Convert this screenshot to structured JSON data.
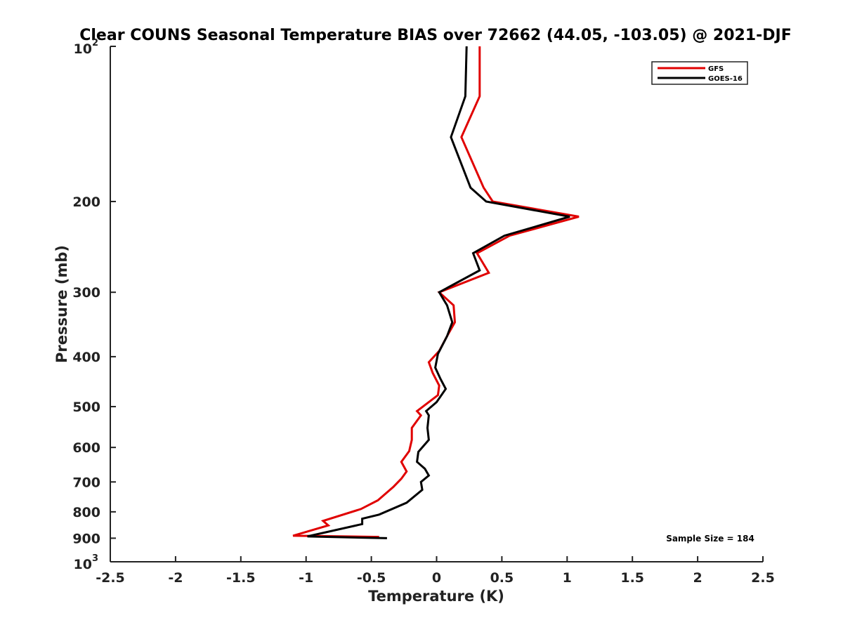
{
  "chart_data": {
    "type": "line",
    "title": "Clear COUNS Seasonal Temperature BIAS over 72662 (44.05, -103.05) @ 2021-DJF",
    "xlabel": "Temperature (K)",
    "ylabel": "Pressure (mb)",
    "xlim": [
      -2.5,
      2.5
    ],
    "ylim": [
      100,
      1000
    ],
    "yscale": "log",
    "yreversed": true,
    "grid": false,
    "legend_position": "top-right",
    "x_ticks": [
      -2.5,
      -2,
      -1.5,
      -1,
      -0.5,
      0,
      0.5,
      1,
      1.5,
      2,
      2.5
    ],
    "x_tick_labels": [
      "-2.5",
      "-2",
      "-1.5",
      "-1",
      "-0.5",
      "0",
      "0.5",
      "1",
      "1.5",
      "2",
      "2.5"
    ],
    "y_ticks": [
      {
        "value": 100,
        "base": "10",
        "exp": "2"
      },
      {
        "value": 200,
        "label": "200"
      },
      {
        "value": 300,
        "label": "300"
      },
      {
        "value": 400,
        "label": "400"
      },
      {
        "value": 500,
        "label": "500"
      },
      {
        "value": 600,
        "label": "600"
      },
      {
        "value": 700,
        "label": "700"
      },
      {
        "value": 800,
        "label": "800"
      },
      {
        "value": 900,
        "label": "900"
      },
      {
        "value": 1000,
        "base": "10",
        "exp": "3"
      }
    ],
    "annotation": "Sample Size = 184",
    "series": [
      {
        "name": "GFS",
        "color": "#e00000",
        "points": [
          [
            0.33,
            100
          ],
          [
            0.33,
            125
          ],
          [
            0.19,
            150
          ],
          [
            0.36,
            188
          ],
          [
            0.43,
            200
          ],
          [
            1.09,
            214
          ],
          [
            0.56,
            233
          ],
          [
            0.31,
            252
          ],
          [
            0.4,
            275
          ],
          [
            0.02,
            300
          ],
          [
            0.13,
            318
          ],
          [
            0.14,
            343
          ],
          [
            0.08,
            365
          ],
          [
            0.02,
            390
          ],
          [
            -0.06,
            410
          ],
          [
            -0.03,
            430
          ],
          [
            0.02,
            455
          ],
          [
            0.01,
            475
          ],
          [
            -0.15,
            510
          ],
          [
            -0.12,
            520
          ],
          [
            -0.19,
            550
          ],
          [
            -0.19,
            580
          ],
          [
            -0.21,
            610
          ],
          [
            -0.27,
            640
          ],
          [
            -0.23,
            668
          ],
          [
            -0.27,
            690
          ],
          [
            -0.33,
            715
          ],
          [
            -0.45,
            760
          ],
          [
            -0.58,
            790
          ],
          [
            -0.87,
            833
          ],
          [
            -0.83,
            850
          ],
          [
            -1.1,
            890
          ],
          [
            -0.44,
            895
          ]
        ]
      },
      {
        "name": "GOES-16",
        "color": "#000000",
        "points": [
          [
            0.23,
            100
          ],
          [
            0.22,
            125
          ],
          [
            0.11,
            150
          ],
          [
            0.26,
            188
          ],
          [
            0.38,
            200
          ],
          [
            1.02,
            214
          ],
          [
            0.52,
            233
          ],
          [
            0.28,
            252
          ],
          [
            0.33,
            272
          ],
          [
            0.02,
            300
          ],
          [
            0.08,
            318
          ],
          [
            0.12,
            343
          ],
          [
            0.08,
            365
          ],
          [
            0.01,
            395
          ],
          [
            -0.01,
            420
          ],
          [
            0.03,
            442
          ],
          [
            0.07,
            462
          ],
          [
            0.0,
            490
          ],
          [
            -0.08,
            510
          ],
          [
            -0.06,
            520
          ],
          [
            -0.07,
            550
          ],
          [
            -0.06,
            580
          ],
          [
            -0.14,
            612
          ],
          [
            -0.15,
            640
          ],
          [
            -0.09,
            660
          ],
          [
            -0.06,
            680
          ],
          [
            -0.12,
            700
          ],
          [
            -0.11,
            725
          ],
          [
            -0.23,
            768
          ],
          [
            -0.44,
            810
          ],
          [
            -0.57,
            825
          ],
          [
            -0.57,
            845
          ],
          [
            -0.99,
            893
          ],
          [
            -0.38,
            900
          ]
        ]
      }
    ]
  }
}
